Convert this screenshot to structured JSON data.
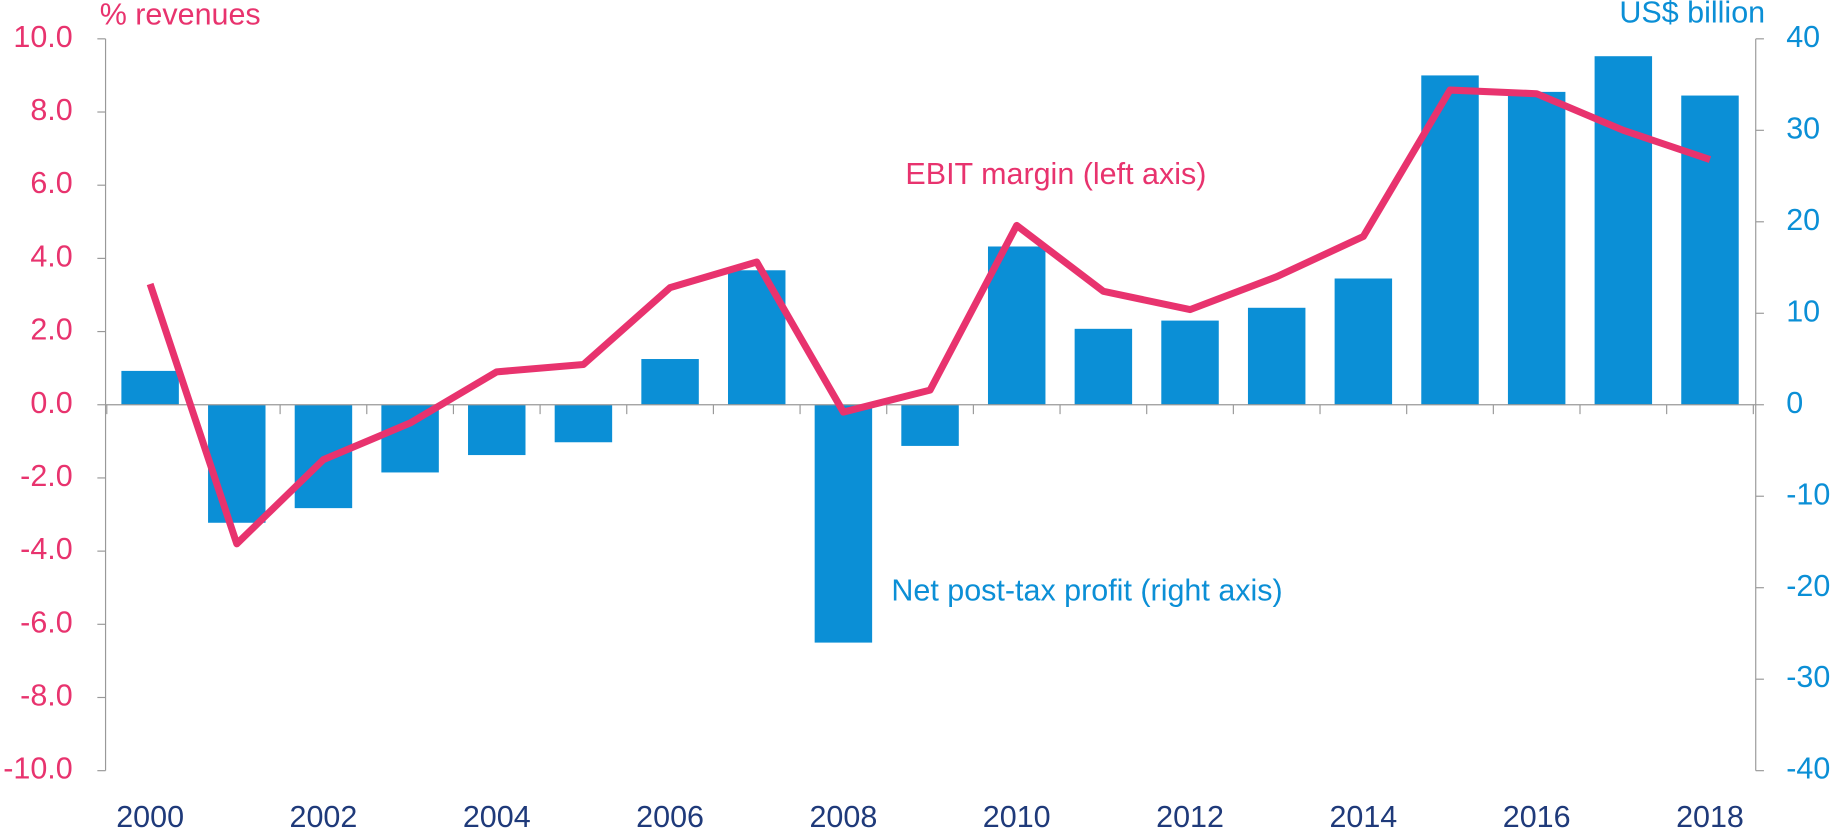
{
  "chart_data": {
    "type": "bar-line",
    "y_label": "% revenues",
    "y2_label": "US$ billion",
    "categories": [
      "2000",
      null,
      "2002",
      null,
      "2004",
      null,
      "2006",
      null,
      "2008",
      null,
      "2010",
      null,
      "2012",
      null,
      "2014",
      null,
      "2016",
      null,
      "2018"
    ],
    "series": [
      {
        "name": "Net post-tax profit (right axis)",
        "type": "bar",
        "color": "#0b8fd6",
        "axis": "y2",
        "values": [
          3.7,
          -12.9,
          -11.3,
          -7.4,
          -5.5,
          -4.1,
          5.0,
          14.7,
          -26.0,
          -4.5,
          17.3,
          8.3,
          9.2,
          10.6,
          13.8,
          36.0,
          34.2,
          38.1,
          33.8
        ]
      },
      {
        "name": "EBIT margin (left axis)",
        "type": "line",
        "color": "#e8336e",
        "values": [
          3.3,
          -3.8,
          -1.5,
          -0.5,
          0.9,
          1.1,
          3.2,
          3.9,
          -0.2,
          0.4,
          4.9,
          3.1,
          2.6,
          3.5,
          4.6,
          8.6,
          8.5,
          7.5,
          6.7
        ]
      }
    ],
    "ylim": [
      -10,
      10
    ],
    "yticks": [
      {
        "value": 10,
        "label": "10.0"
      },
      {
        "value": 8,
        "label": "8.0"
      },
      {
        "value": 6,
        "label": "6.0"
      },
      {
        "value": 4,
        "label": "4.0"
      },
      {
        "value": 2,
        "label": "2.0"
      },
      {
        "value": 0,
        "label": "0.0"
      },
      {
        "value": -2,
        "label": "-2.0"
      },
      {
        "value": -4,
        "label": "-4.0"
      },
      {
        "value": -6,
        "label": "-6.0"
      },
      {
        "value": -8,
        "label": "-8.0"
      },
      {
        "value": -10,
        "label": "-10.0"
      }
    ],
    "y2lim": [
      -40,
      40
    ],
    "y2ticks": [
      40,
      30,
      20,
      10,
      0,
      -10,
      -20,
      -30,
      -40
    ],
    "y_color": "#e8336e",
    "y2_color": "#0b8fd6",
    "x_color": "#1f3a7a"
  }
}
